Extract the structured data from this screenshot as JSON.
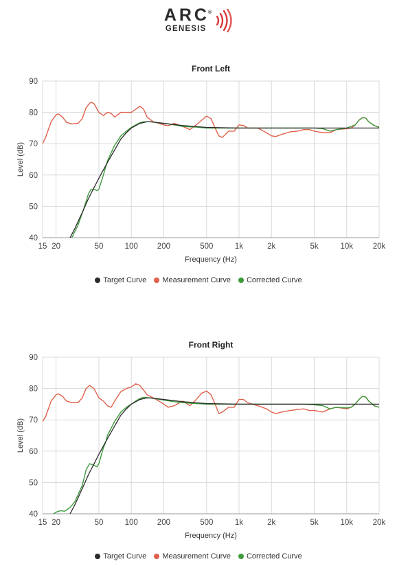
{
  "logo": {
    "main": "ARC",
    "sub": "GENESIS",
    "registered": "®"
  },
  "colors": {
    "target": "#2a2a2a",
    "measurement": "#e0604a",
    "corrected": "#3f9a3b",
    "grid": "#d9d9d9",
    "axis": "#9a9a9a"
  },
  "chart_data": [
    {
      "type": "line",
      "title": "Front Left",
      "xlabel": "Frequency (Hz)",
      "ylabel": "Level (dB)",
      "xscale": "log",
      "xlim": [
        15,
        20000
      ],
      "ylim": [
        40,
        90
      ],
      "yticks": [
        40,
        50,
        60,
        70,
        80,
        90
      ],
      "xticks": [
        15,
        20,
        50,
        100,
        200,
        500,
        1000,
        2000,
        5000,
        10000,
        20000
      ],
      "xtick_labels": [
        "15",
        "20",
        "50",
        "100",
        "200",
        "500",
        "1k",
        "2k",
        "5k",
        "10k",
        "20k"
      ],
      "grid": true,
      "legend": "bottom",
      "series": [
        {
          "name": "Target Curve",
          "color": "#2a2a2a",
          "points": [
            [
              27,
              40
            ],
            [
              30,
              43
            ],
            [
              35,
              48
            ],
            [
              40,
              52.5
            ],
            [
              50,
              59
            ],
            [
              60,
              64
            ],
            [
              70,
              68
            ],
            [
              80,
              71.5
            ],
            [
              90,
              73.5
            ],
            [
              100,
              75
            ],
            [
              120,
              76.5
            ],
            [
              140,
              77
            ],
            [
              150,
              77
            ],
            [
              200,
              76.5
            ],
            [
              300,
              75.8
            ],
            [
              500,
              75.2
            ],
            [
              1000,
              75
            ],
            [
              2000,
              75
            ],
            [
              5000,
              75
            ],
            [
              10000,
              75
            ],
            [
              20000,
              75
            ]
          ]
        },
        {
          "name": "Measurement Curve",
          "color": "#e0604a",
          "points": [
            [
              15,
              70
            ],
            [
              16,
              72
            ],
            [
              18,
              77
            ],
            [
              20,
              79.2
            ],
            [
              21,
              79.5
            ],
            [
              23,
              78.5
            ],
            [
              25,
              76.8
            ],
            [
              28,
              76.3
            ],
            [
              32,
              76.5
            ],
            [
              35,
              78
            ],
            [
              38,
              81.5
            ],
            [
              42,
              83.3
            ],
            [
              45,
              82.8
            ],
            [
              50,
              80
            ],
            [
              55,
              79
            ],
            [
              60,
              80
            ],
            [
              65,
              79.7
            ],
            [
              70,
              78.5
            ],
            [
              80,
              80
            ],
            [
              90,
              80
            ],
            [
              100,
              80
            ],
            [
              110,
              81
            ],
            [
              120,
              82
            ],
            [
              130,
              81
            ],
            [
              140,
              78.5
            ],
            [
              160,
              77
            ],
            [
              180,
              76.5
            ],
            [
              200,
              76
            ],
            [
              220,
              75.7
            ],
            [
              250,
              76.5
            ],
            [
              300,
              75.5
            ],
            [
              350,
              74.5
            ],
            [
              400,
              76
            ],
            [
              450,
              77.5
            ],
            [
              500,
              78.8
            ],
            [
              550,
              78
            ],
            [
              600,
              75
            ],
            [
              650,
              72.5
            ],
            [
              700,
              72
            ],
            [
              800,
              74
            ],
            [
              900,
              74
            ],
            [
              1000,
              76
            ],
            [
              1100,
              75.8
            ],
            [
              1200,
              75
            ],
            [
              1500,
              75
            ],
            [
              1800,
              73.5
            ],
            [
              2000,
              72.5
            ],
            [
              2200,
              72.3
            ],
            [
              2500,
              73
            ],
            [
              3000,
              73.8
            ],
            [
              3500,
              74
            ],
            [
              4000,
              74.5
            ],
            [
              4500,
              74.5
            ],
            [
              5000,
              74
            ],
            [
              6000,
              73.5
            ],
            [
              7000,
              73.5
            ],
            [
              8000,
              74.5
            ],
            [
              10000,
              74.8
            ],
            [
              11000,
              75
            ],
            [
              12000,
              76
            ],
            [
              13000,
              77.5
            ],
            [
              14000,
              78.3
            ],
            [
              15000,
              78.2
            ],
            [
              16000,
              77
            ],
            [
              18000,
              75.8
            ],
            [
              20000,
              75.3
            ]
          ]
        },
        {
          "name": "Corrected Curve",
          "color": "#3f9a3b",
          "points": [
            [
              28,
              40
            ],
            [
              32,
              44
            ],
            [
              36,
              49
            ],
            [
              40,
              54
            ],
            [
              42,
              55.3
            ],
            [
              45,
              55.5
            ],
            [
              48,
              55
            ],
            [
              50,
              55.5
            ],
            [
              55,
              60
            ],
            [
              60,
              64.5
            ],
            [
              70,
              69.5
            ],
            [
              80,
              72.5
            ],
            [
              90,
              74
            ],
            [
              100,
              75.2
            ],
            [
              110,
              76
            ],
            [
              120,
              76.7
            ],
            [
              130,
              77
            ],
            [
              150,
              77
            ],
            [
              200,
              76.5
            ],
            [
              250,
              76
            ],
            [
              300,
              75.5
            ],
            [
              400,
              75.3
            ],
            [
              500,
              75
            ],
            [
              1000,
              75
            ],
            [
              2000,
              75
            ],
            [
              3000,
              75
            ],
            [
              4000,
              75
            ],
            [
              5000,
              75
            ],
            [
              6000,
              74.8
            ],
            [
              7000,
              74
            ],
            [
              8000,
              74.5
            ],
            [
              10000,
              75
            ],
            [
              12000,
              76
            ],
            [
              13000,
              77.5
            ],
            [
              14000,
              78.3
            ],
            [
              15000,
              78.2
            ],
            [
              16000,
              77
            ],
            [
              18000,
              75.8
            ],
            [
              20000,
              75.2
            ]
          ]
        }
      ]
    },
    {
      "type": "line",
      "title": "Front Right",
      "xlabel": "Frequency (Hz)",
      "ylabel": "Level (dB)",
      "xscale": "log",
      "xlim": [
        15,
        20000
      ],
      "ylim": [
        40,
        90
      ],
      "yticks": [
        40,
        50,
        60,
        70,
        80,
        90
      ],
      "xticks": [
        15,
        20,
        50,
        100,
        200,
        500,
        1000,
        2000,
        5000,
        10000,
        20000
      ],
      "xtick_labels": [
        "15",
        "20",
        "50",
        "100",
        "200",
        "500",
        "1k",
        "2k",
        "5k",
        "10k",
        "20k"
      ],
      "grid": true,
      "legend": "bottom",
      "series": [
        {
          "name": "Target Curve",
          "color": "#2a2a2a",
          "points": [
            [
              27,
              40
            ],
            [
              30,
              43
            ],
            [
              35,
              48
            ],
            [
              40,
              52.5
            ],
            [
              50,
              59
            ],
            [
              60,
              64
            ],
            [
              70,
              68
            ],
            [
              80,
              71.5
            ],
            [
              90,
              73.5
            ],
            [
              100,
              75
            ],
            [
              120,
              76.5
            ],
            [
              140,
              77
            ],
            [
              150,
              77
            ],
            [
              200,
              76.5
            ],
            [
              300,
              75.8
            ],
            [
              500,
              75.2
            ],
            [
              1000,
              75
            ],
            [
              2000,
              75
            ],
            [
              5000,
              75
            ],
            [
              10000,
              75
            ],
            [
              20000,
              75
            ]
          ]
        },
        {
          "name": "Measurement Curve",
          "color": "#e0604a",
          "points": [
            [
              15,
              69.5
            ],
            [
              16,
              71
            ],
            [
              18,
              76
            ],
            [
              20,
              78
            ],
            [
              21,
              78.3
            ],
            [
              23,
              77.5
            ],
            [
              25,
              76
            ],
            [
              28,
              75.5
            ],
            [
              32,
              75.5
            ],
            [
              35,
              77
            ],
            [
              38,
              80
            ],
            [
              41,
              81
            ],
            [
              45,
              80
            ],
            [
              50,
              77
            ],
            [
              55,
              76
            ],
            [
              60,
              74.5
            ],
            [
              65,
              74
            ],
            [
              70,
              76
            ],
            [
              80,
              79
            ],
            [
              90,
              80
            ],
            [
              100,
              80.5
            ],
            [
              110,
              81.5
            ],
            [
              120,
              81
            ],
            [
              130,
              79.5
            ],
            [
              140,
              78
            ],
            [
              160,
              77
            ],
            [
              180,
              76
            ],
            [
              200,
              75
            ],
            [
              220,
              74
            ],
            [
              250,
              74.5
            ],
            [
              300,
              76
            ],
            [
              350,
              74.5
            ],
            [
              400,
              76.5
            ],
            [
              450,
              78.5
            ],
            [
              500,
              79.2
            ],
            [
              550,
              78
            ],
            [
              600,
              75
            ],
            [
              650,
              72
            ],
            [
              700,
              72.5
            ],
            [
              800,
              74
            ],
            [
              900,
              74
            ],
            [
              1000,
              76.5
            ],
            [
              1100,
              76.5
            ],
            [
              1200,
              75.5
            ],
            [
              1500,
              74.5
            ],
            [
              1800,
              73.5
            ],
            [
              2000,
              72.5
            ],
            [
              2200,
              72
            ],
            [
              2500,
              72.5
            ],
            [
              3000,
              73
            ],
            [
              3500,
              73.3
            ],
            [
              4000,
              73.5
            ],
            [
              4500,
              73
            ],
            [
              5000,
              73
            ],
            [
              6000,
              72.5
            ],
            [
              7000,
              73.5
            ],
            [
              8000,
              74
            ],
            [
              10000,
              73.5
            ],
            [
              11000,
              74
            ],
            [
              12000,
              75
            ],
            [
              13000,
              76.5
            ],
            [
              14000,
              77.5
            ],
            [
              15000,
              77.3
            ],
            [
              16000,
              76
            ],
            [
              18000,
              74.5
            ],
            [
              20000,
              74
            ]
          ]
        },
        {
          "name": "Corrected Curve",
          "color": "#3f9a3b",
          "points": [
            [
              19,
              40
            ],
            [
              20,
              40.5
            ],
            [
              22,
              41
            ],
            [
              24,
              40.8
            ],
            [
              27,
              42
            ],
            [
              30,
              44
            ],
            [
              35,
              49
            ],
            [
              38,
              54
            ],
            [
              41,
              56
            ],
            [
              45,
              55.5
            ],
            [
              48,
              55
            ],
            [
              50,
              56
            ],
            [
              55,
              61
            ],
            [
              58,
              63
            ],
            [
              60,
              65
            ],
            [
              70,
              69.5
            ],
            [
              80,
              72.5
            ],
            [
              90,
              74
            ],
            [
              100,
              75
            ],
            [
              110,
              76
            ],
            [
              120,
              76.8
            ],
            [
              130,
              77.2
            ],
            [
              150,
              77
            ],
            [
              200,
              76.3
            ],
            [
              250,
              75.8
            ],
            [
              300,
              75.5
            ],
            [
              400,
              75.2
            ],
            [
              500,
              75
            ],
            [
              1000,
              75
            ],
            [
              2000,
              75
            ],
            [
              3000,
              75
            ],
            [
              4000,
              75
            ],
            [
              5000,
              74.8
            ],
            [
              6000,
              74.5
            ],
            [
              7000,
              73.5
            ],
            [
              8000,
              74
            ],
            [
              10000,
              73.8
            ],
            [
              11000,
              74
            ],
            [
              12000,
              75
            ],
            [
              13000,
              76.5
            ],
            [
              14000,
              77.5
            ],
            [
              15000,
              77.3
            ],
            [
              16000,
              76
            ],
            [
              18000,
              74.5
            ],
            [
              20000,
              74
            ]
          ]
        }
      ]
    }
  ]
}
